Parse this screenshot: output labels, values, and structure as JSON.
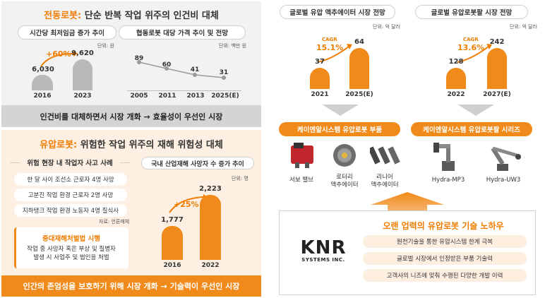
{
  "left_top": {
    "title_highlight": "전동로봇:",
    "title_rest": "단순 반복 작업 위주의 인건비 대체",
    "wage_pill": "시간당 최저임금 증가 추이",
    "wage_unit": "단위: 원",
    "wage_growth": "+60%",
    "wage_bars": [
      {
        "year": "2016",
        "value": "6,030"
      },
      {
        "year": "2023",
        "value": "9,620"
      }
    ],
    "robot_pill": "협동로봇 대당 가격 추이 및 전망",
    "robot_unit": "단위: 백만 원",
    "robot_points": [
      {
        "year": "2005",
        "value": "89"
      },
      {
        "year": "2011",
        "value": "60"
      },
      {
        "year": "2013",
        "value": "41"
      },
      {
        "year": "2025(E)",
        "value": "31"
      }
    ],
    "banner": "인건비를 대체하면서 시장 개화 → 효율성이 우선인 시장"
  },
  "left_bottom": {
    "title_highlight": "유압로봇:",
    "title_rest": "위험한 작업 위주의 재해 위험성 대체",
    "cases_pill": "위험 현장 내 작업자 사고 사례",
    "cases": [
      "한 달 사이 조선소 근로자 4명 사망",
      "고분진 작업 환경 근로자 2명 사망",
      "지하탱크 작업 환경 노동자 4명 질식사"
    ],
    "source": "자료: 언론매체",
    "law_title": "중대재해처벌법 시행",
    "law_text_1": "작업 중 사망자 혹은 부상 및 질병자",
    "law_text_2": "발생 시 사업주 및 법인을 처벌",
    "injured_pill": "국내 산업재해 사망자 수 증가 추이",
    "injured_unit": "단위: 명",
    "injured_growth": "+25%",
    "injured_bars": [
      {
        "year": "2016",
        "value": "1,777"
      },
      {
        "year": "2022",
        "value": "2,223"
      }
    ],
    "banner": "인간의 존엄성을 보호하기 위해 시장 개화 → 기술력이 우선인 시장"
  },
  "right": {
    "actuator_pill": "글로벌 유압 액추에이터 시장 전망",
    "actuator_unit": "단위: 억 달러",
    "actuator_cagr_label": "CAGR",
    "actuator_cagr": "15.1%",
    "actuator_bars": [
      {
        "year": "2021",
        "value": "37"
      },
      {
        "year": "2025(E)",
        "value": "64"
      }
    ],
    "arm_pill": "글로벌 유압로봇팔 시장 전망",
    "arm_unit": "단위: 억 달러",
    "arm_cagr_label": "CAGR",
    "arm_cagr": "13.6%",
    "arm_bars": [
      {
        "year": "2022",
        "value": "128"
      },
      {
        "year": "2027(E)",
        "value": "242"
      }
    ],
    "parts_banner": "케이엔알시스템 유압로봇 부품",
    "parts": [
      {
        "line1": "서보 밸브",
        "line2": ""
      },
      {
        "line1": "로터리",
        "line2": "액추에이터"
      },
      {
        "line1": "리니어",
        "line2": "액추에이터"
      }
    ],
    "arms_banner": "케이엔알시스템 유압로봇팔 시리즈",
    "arms": [
      "Hydra-MP3",
      "Hydra-UW3"
    ],
    "logo_text": "KNR",
    "logo_sub": "SYSTEMS INC.",
    "knowhow_title": "오랜 업력의 유압로봇 기술 노하우",
    "knowhow_items": [
      "원천기술을 통한 유압시스템 한계 극복",
      "글로벌 시장에서 인정받은 부품 기술력",
      "고객사의 니즈에 맞춰 수행된 다양한 개발 이력"
    ]
  }
}
